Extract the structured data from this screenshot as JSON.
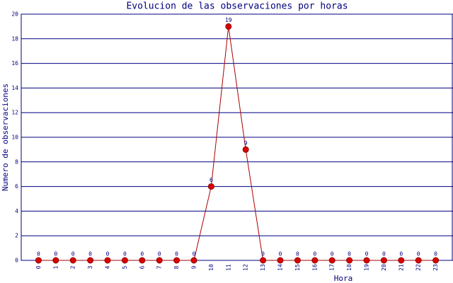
{
  "chart_data": {
    "type": "line",
    "title": "Evolucion de las observaciones por horas",
    "x_label": "Hora",
    "y_label": "Numero de observaciones",
    "categories": [
      "0",
      "1",
      "2",
      "3",
      "4",
      "5",
      "6",
      "7",
      "8",
      "9",
      "10",
      "11",
      "12",
      "13",
      "14",
      "15",
      "16",
      "17",
      "18",
      "19",
      "20",
      "21",
      "22",
      "23"
    ],
    "values": [
      0,
      0,
      0,
      0,
      0,
      0,
      0,
      0,
      0,
      0,
      6,
      19,
      9,
      0,
      0,
      0,
      0,
      0,
      0,
      0,
      0,
      0,
      0,
      0
    ],
    "color": "#aa0000",
    "ylim": [
      0,
      20
    ],
    "yticks": [
      0,
      2,
      4,
      6,
      8,
      10,
      12,
      14,
      16,
      18,
      20
    ],
    "grid": true
  }
}
